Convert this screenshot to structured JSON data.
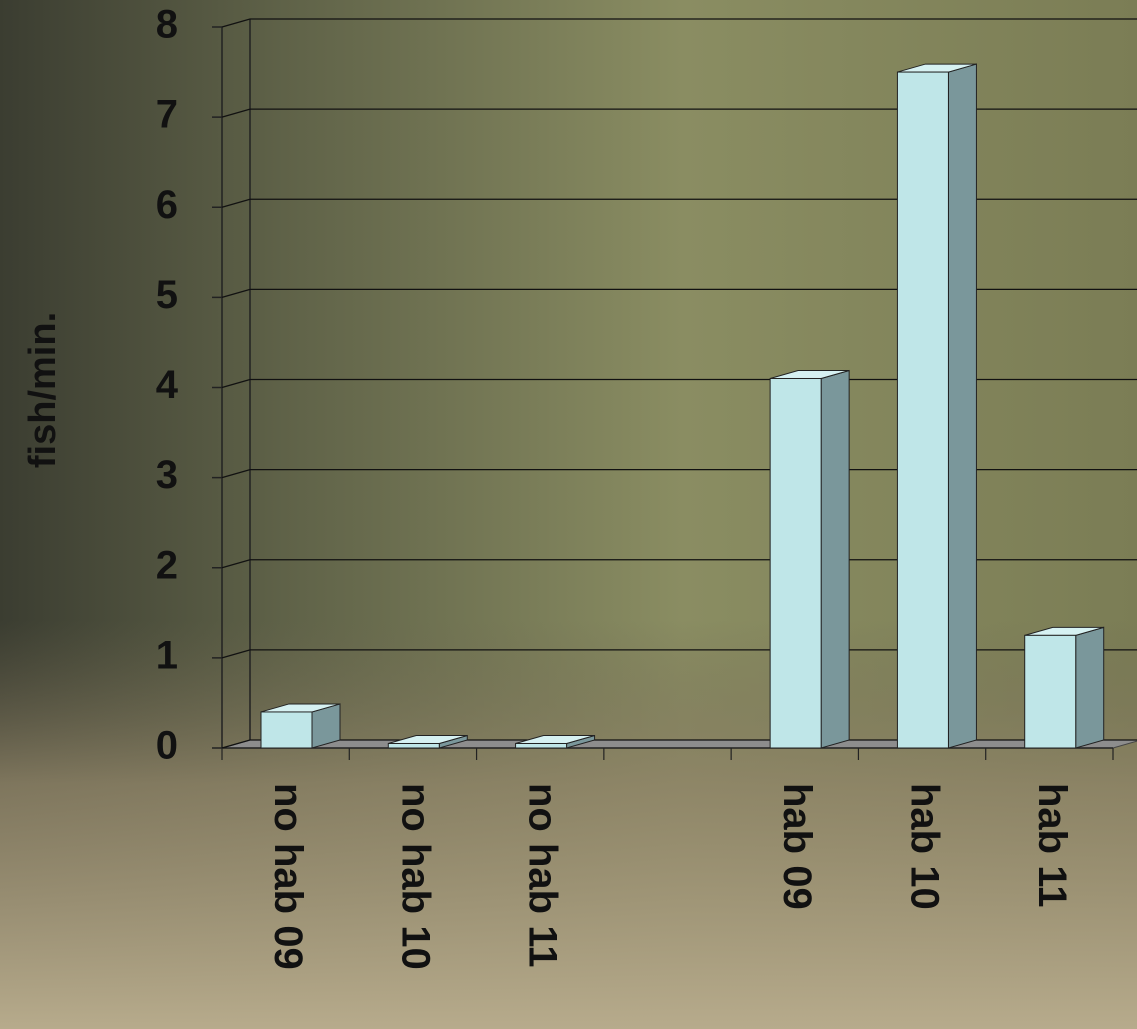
{
  "chart_data": {
    "type": "bar",
    "y_label": "fish/min.",
    "categories": [
      "no hab 09",
      "no hab 10",
      "no hab 11",
      null,
      "hab 09",
      "hab 10",
      "hab 11"
    ],
    "values": [
      0.4,
      0.05,
      0.05,
      null,
      4.1,
      7.5,
      1.25
    ],
    "color": "#bfe6e8",
    "ylim": [
      0,
      8
    ],
    "yticks": [
      0,
      1,
      2,
      3,
      4,
      5,
      6,
      7,
      8
    ],
    "grid": true
  }
}
